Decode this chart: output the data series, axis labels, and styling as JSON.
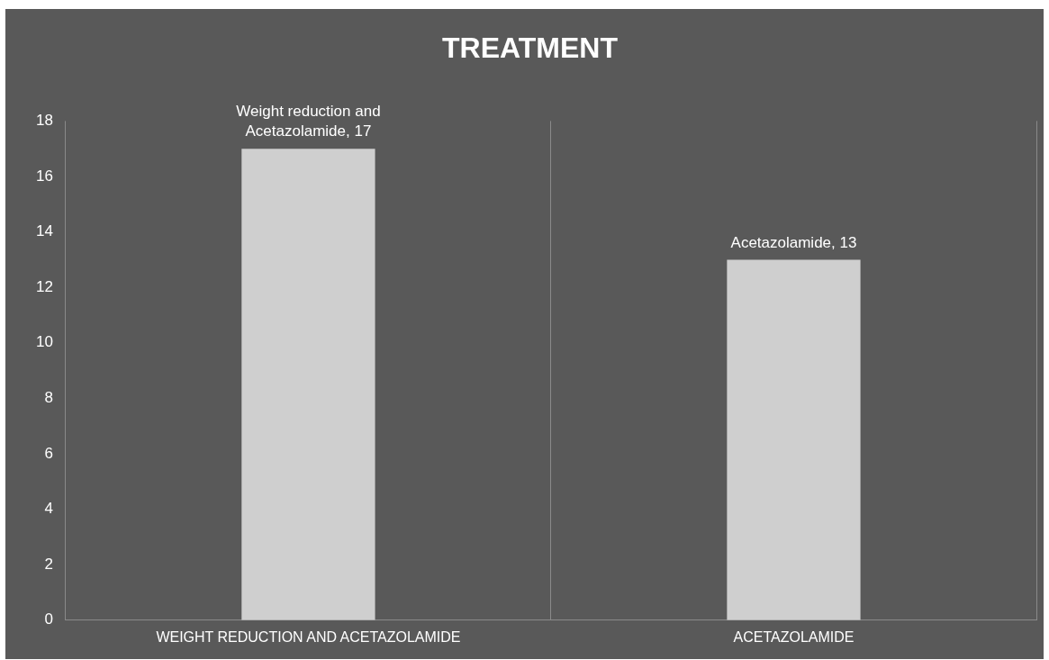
{
  "chart_data": {
    "type": "bar",
    "title": "TREATMENT",
    "categories": [
      "WEIGHT REDUCTION AND ACETAZOLAMIDE",
      "ACETAZOLAMIDE"
    ],
    "values": [
      17,
      13
    ],
    "color": "#cfcfcf",
    "value_labels": [
      "Weight reduction and Acetazolamide, 17",
      "Acetazolamide, 13"
    ],
    "ylim": [
      0,
      18
    ],
    "yticks": [
      0,
      2,
      4,
      6,
      8,
      10,
      12,
      14,
      16,
      18
    ],
    "grid": "x",
    "legend": false
  }
}
